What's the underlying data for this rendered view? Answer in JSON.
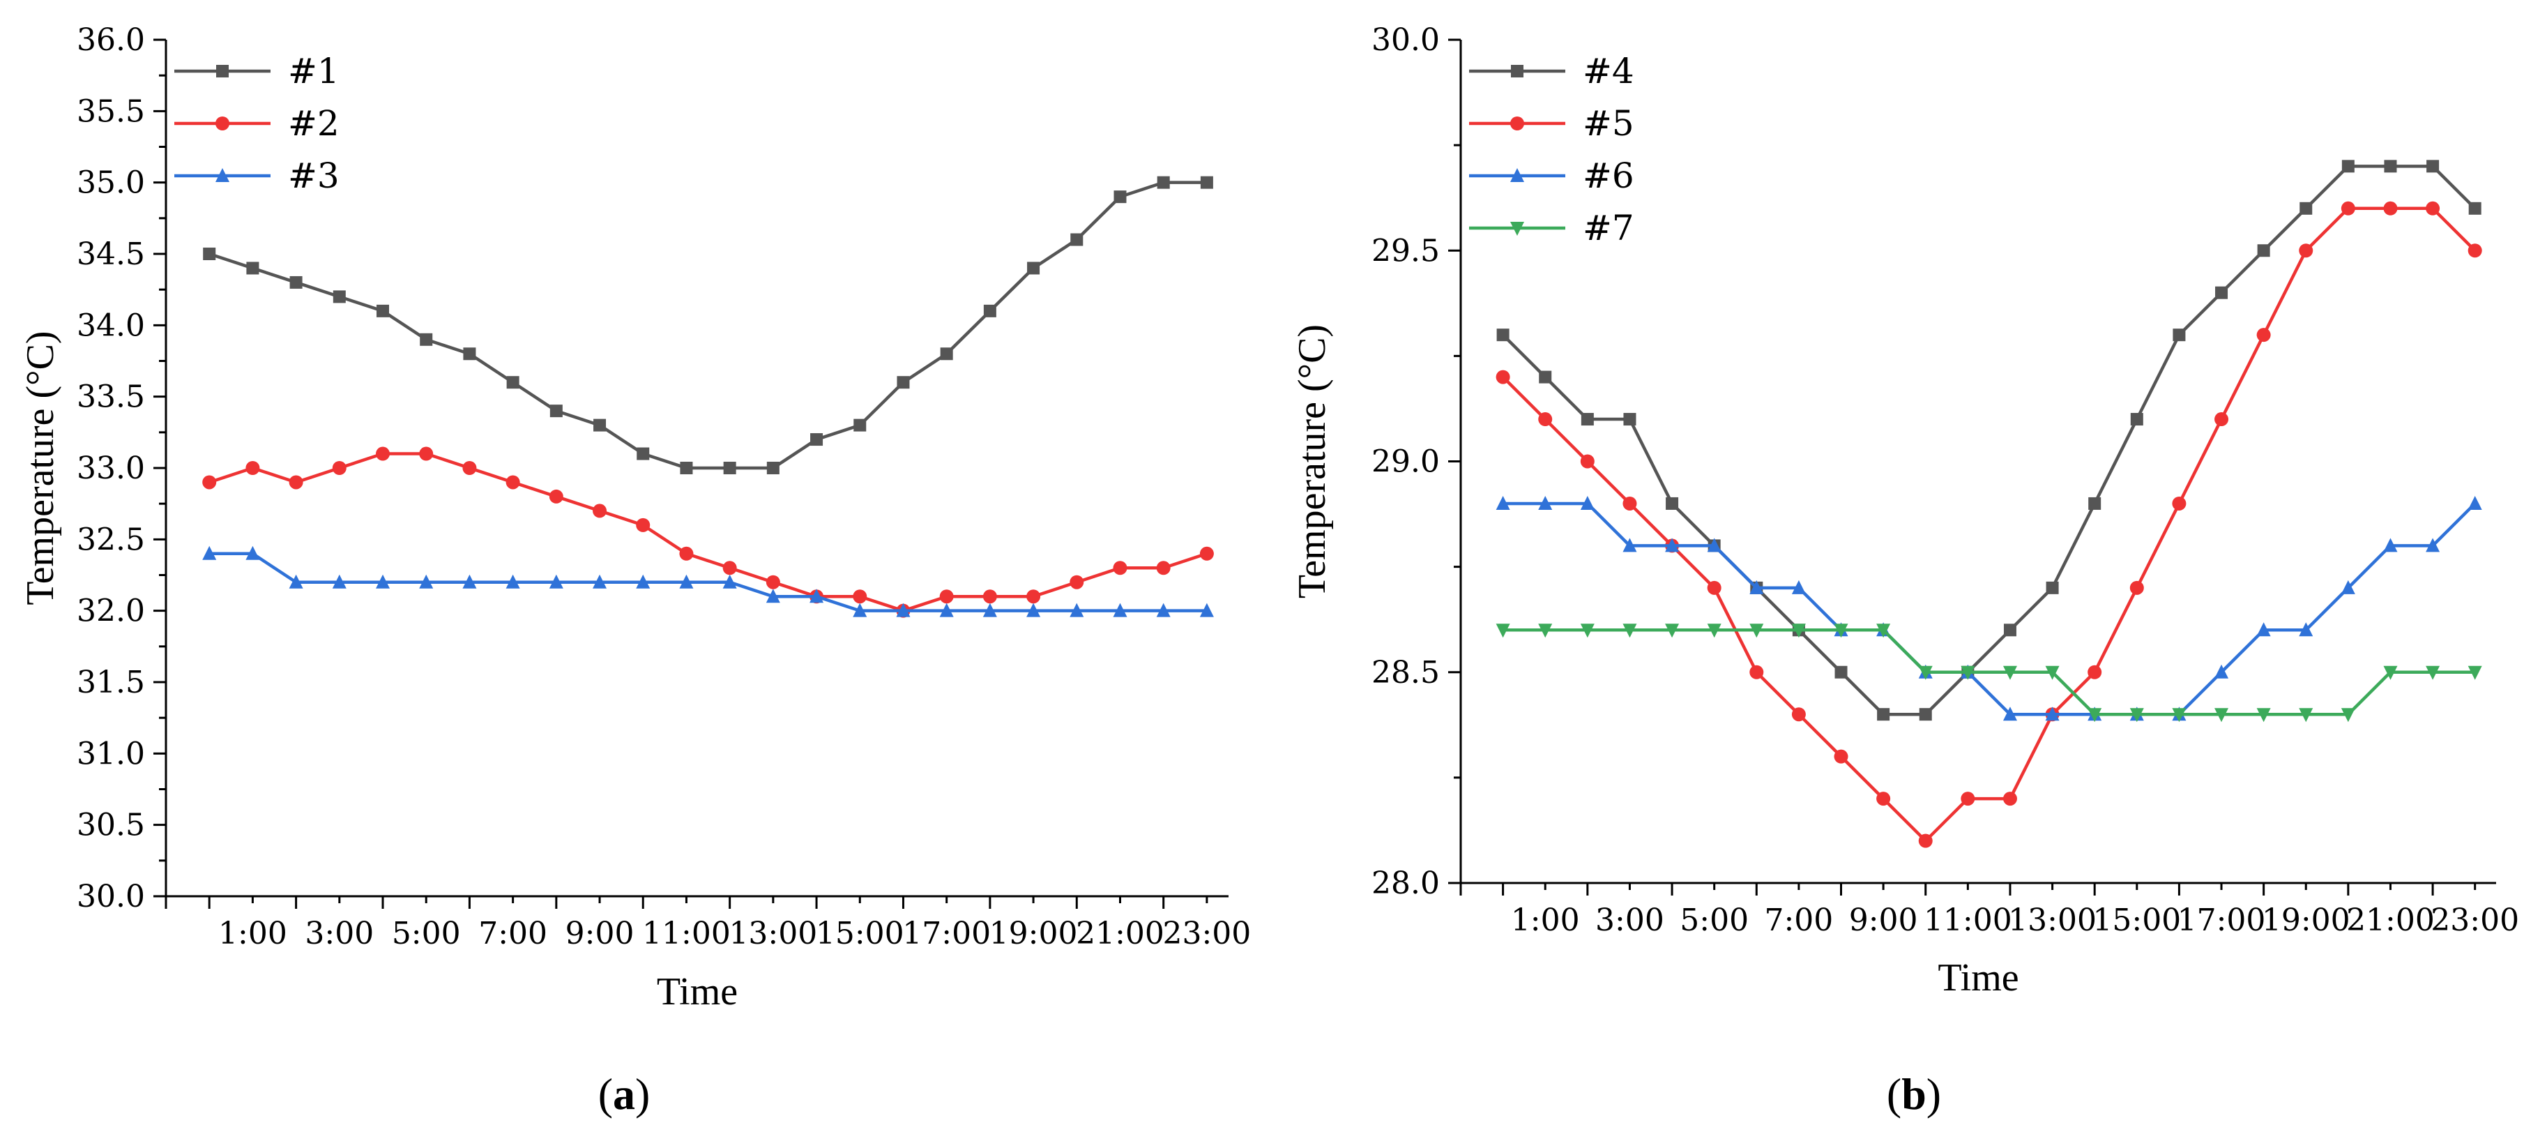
{
  "chart_data": [
    {
      "type": "line",
      "panel_label": {
        "open": "(",
        "letter": "a",
        "close": ")"
      },
      "xlabel": "Time",
      "ylabel": "Temperature (°C)",
      "ylim": [
        30,
        36
      ],
      "yticks": [
        "30.0",
        "30.5",
        "31.0",
        "31.5",
        "32.0",
        "32.5",
        "33.0",
        "33.5",
        "34.0",
        "34.5",
        "35.0",
        "35.5",
        "36.0"
      ],
      "xlim": [
        -1,
        23.5
      ],
      "xtick_labels": [
        {
          "x": 1,
          "label": "1:00"
        },
        {
          "x": 3,
          "label": "3:00"
        },
        {
          "x": 5,
          "label": "5:00"
        },
        {
          "x": 7,
          "label": "7:00"
        },
        {
          "x": 9,
          "label": "9:00"
        },
        {
          "x": 11,
          "label": "11:00"
        },
        {
          "x": 13,
          "label": "13:00"
        },
        {
          "x": 15,
          "label": "15:00"
        },
        {
          "x": 17,
          "label": "17:00"
        },
        {
          "x": 19,
          "label": "19:00"
        },
        {
          "x": 21,
          "label": "21:00"
        },
        {
          "x": 23,
          "label": "23:00"
        }
      ],
      "x": [
        0,
        1,
        2,
        3,
        4,
        5,
        6,
        7,
        8,
        9,
        10,
        11,
        12,
        13,
        14,
        15,
        16,
        17,
        18,
        19,
        20,
        21,
        22,
        23
      ],
      "legend_position": "top-left",
      "series": [
        {
          "name": "#1",
          "color": "#555555",
          "marker": "square",
          "values": [
            34.5,
            34.4,
            34.3,
            34.2,
            34.1,
            33.9,
            33.8,
            33.6,
            33.4,
            33.3,
            33.1,
            33.0,
            33.0,
            33.0,
            33.2,
            33.3,
            33.6,
            33.8,
            34.1,
            34.4,
            34.6,
            34.9,
            35.0,
            35.0
          ]
        },
        {
          "name": "#2",
          "color": "#ee3333",
          "marker": "circle",
          "values": [
            32.9,
            33.0,
            32.9,
            33.0,
            33.1,
            33.1,
            33.0,
            32.9,
            32.8,
            32.7,
            32.6,
            32.4,
            32.3,
            32.2,
            32.1,
            32.1,
            32.0,
            32.1,
            32.1,
            32.1,
            32.2,
            32.3,
            32.3,
            32.4
          ]
        },
        {
          "name": "#3",
          "color": "#2f72d8",
          "marker": "triangle-up",
          "values": [
            32.4,
            32.4,
            32.2,
            32.2,
            32.2,
            32.2,
            32.2,
            32.2,
            32.2,
            32.2,
            32.2,
            32.2,
            32.2,
            32.1,
            32.1,
            32.0,
            32.0,
            32.0,
            32.0,
            32.0,
            32.0,
            32.0,
            32.0,
            32.0
          ]
        }
      ]
    },
    {
      "type": "line",
      "panel_label": {
        "open": "(",
        "letter": "b",
        "close": ")"
      },
      "xlabel": "Time",
      "ylabel": "Temperature (°C)",
      "ylim": [
        28,
        30
      ],
      "yticks": [
        "28.0",
        "28.5",
        "29.0",
        "29.5",
        "30.0"
      ],
      "xlim": [
        -1,
        23.5
      ],
      "xtick_labels": [
        {
          "x": 1,
          "label": "1:00"
        },
        {
          "x": 3,
          "label": "3:00"
        },
        {
          "x": 5,
          "label": "5:00"
        },
        {
          "x": 7,
          "label": "7:00"
        },
        {
          "x": 9,
          "label": "9:00"
        },
        {
          "x": 11,
          "label": "11:00"
        },
        {
          "x": 13,
          "label": "13:00"
        },
        {
          "x": 15,
          "label": "15:00"
        },
        {
          "x": 17,
          "label": "17:00"
        },
        {
          "x": 19,
          "label": "19:00"
        },
        {
          "x": 21,
          "label": "21:00"
        },
        {
          "x": 23,
          "label": "23:00"
        }
      ],
      "x": [
        0,
        1,
        2,
        3,
        4,
        5,
        6,
        7,
        8,
        9,
        10,
        11,
        12,
        13,
        14,
        15,
        16,
        17,
        18,
        19,
        20,
        21,
        22,
        23
      ],
      "legend_position": "top-left",
      "series": [
        {
          "name": "#4",
          "color": "#555555",
          "marker": "square",
          "values": [
            29.3,
            29.2,
            29.1,
            29.1,
            28.9,
            28.8,
            28.7,
            28.6,
            28.5,
            28.4,
            28.4,
            28.5,
            28.6,
            28.7,
            28.9,
            29.1,
            29.3,
            29.4,
            29.5,
            29.6,
            29.7,
            29.7,
            29.7,
            29.6
          ]
        },
        {
          "name": "#5",
          "color": "#ee3333",
          "marker": "circle",
          "values": [
            29.2,
            29.1,
            29.0,
            28.9,
            28.8,
            28.7,
            28.5,
            28.4,
            28.3,
            28.2,
            28.1,
            28.2,
            28.2,
            28.4,
            28.5,
            28.7,
            28.9,
            29.1,
            29.3,
            29.5,
            29.6,
            29.6,
            29.6,
            29.5
          ]
        },
        {
          "name": "#6",
          "color": "#2f72d8",
          "marker": "triangle-up",
          "values": [
            28.9,
            28.9,
            28.9,
            28.8,
            28.8,
            28.8,
            28.7,
            28.7,
            28.6,
            28.6,
            28.5,
            28.5,
            28.4,
            28.4,
            28.4,
            28.4,
            28.4,
            28.5,
            28.6,
            28.6,
            28.7,
            28.8,
            28.8,
            28.9
          ]
        },
        {
          "name": "#7",
          "color": "#3caa5a",
          "marker": "triangle-down",
          "values": [
            28.6,
            28.6,
            28.6,
            28.6,
            28.6,
            28.6,
            28.6,
            28.6,
            28.6,
            28.6,
            28.5,
            28.5,
            28.5,
            28.5,
            28.4,
            28.4,
            28.4,
            28.4,
            28.4,
            28.4,
            28.4,
            28.5,
            28.5,
            28.5
          ]
        }
      ]
    }
  ]
}
